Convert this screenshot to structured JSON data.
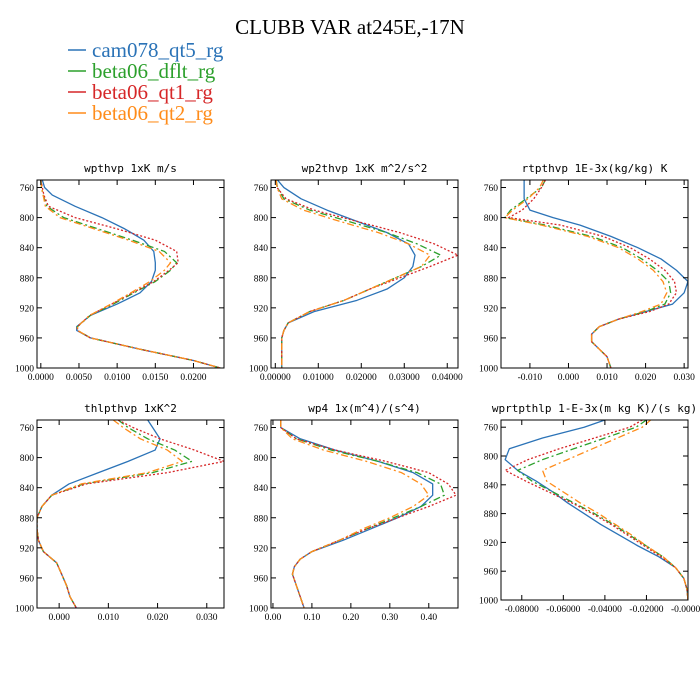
{
  "figure": {
    "title": "CLUBB VAR at245E,-17N",
    "legend": [
      {
        "label": "cam078_qt5_rg",
        "color": "#2b73b7",
        "dash": "solid"
      },
      {
        "label": "beta06_dflt_rg",
        "color": "#2ca02c",
        "dash": "dashdot"
      },
      {
        "label": "beta06_qt1_rg",
        "color": "#d62728",
        "dash": "dot"
      },
      {
        "label": "beta06_qt2_rg",
        "color": "#ff8c1a",
        "dash": "dashdot"
      }
    ]
  },
  "chart_data": [
    {
      "type": "line",
      "title": "wpthvp  1xK m/s",
      "xlim": [
        -0.0005,
        0.024
      ],
      "xticks": [
        0,
        0.005,
        0.01,
        0.015,
        0.02
      ],
      "xticklabels": [
        "0.0000",
        "0.0050",
        "0.0100",
        "0.0150",
        "0.0200"
      ],
      "ylim": [
        1000,
        750
      ],
      "yticks": [
        760,
        800,
        840,
        880,
        920,
        960,
        1000
      ],
      "levels": [
        750,
        760,
        770,
        785,
        800,
        815,
        830,
        845,
        860,
        870,
        885,
        900,
        915,
        930,
        945,
        950,
        960,
        975,
        990,
        1000
      ],
      "series": [
        {
          "name": "cam078_qt5_rg",
          "values": [
            0.0002,
            0.0005,
            0.0015,
            0.0045,
            0.008,
            0.011,
            0.0135,
            0.0148,
            0.015,
            0.015,
            0.0145,
            0.013,
            0.01,
            0.0065,
            0.0047,
            0.0047,
            0.0065,
            0.013,
            0.02,
            0.0235
          ]
        },
        {
          "name": "beta06_dflt_rg",
          "values": [
            0.0,
            0.0001,
            0.0003,
            0.0008,
            0.003,
            0.0075,
            0.012,
            0.0162,
            0.0178,
            0.017,
            0.015,
            0.0122,
            0.0095,
            0.0065,
            0.0048,
            0.0048,
            0.0065,
            0.013,
            0.02,
            0.0235
          ]
        },
        {
          "name": "beta06_qt1_rg",
          "values": [
            0.0,
            0.0002,
            0.0004,
            0.001,
            0.0045,
            0.01,
            0.015,
            0.0178,
            0.018,
            0.0168,
            0.0148,
            0.012,
            0.0093,
            0.0064,
            0.0048,
            0.0048,
            0.0065,
            0.013,
            0.02,
            0.0235
          ]
        },
        {
          "name": "beta06_qt2_rg",
          "values": [
            0.0,
            0.0001,
            0.0003,
            0.0006,
            0.0025,
            0.007,
            0.0115,
            0.0155,
            0.017,
            0.0162,
            0.0143,
            0.0118,
            0.0092,
            0.0064,
            0.0048,
            0.0048,
            0.0065,
            0.013,
            0.02,
            0.0235
          ]
        }
      ]
    },
    {
      "type": "line",
      "title": "wp2thvp  1xK m^2/s^2",
      "xlim": [
        -0.001,
        0.0425
      ],
      "xticks": [
        0,
        0.01,
        0.02,
        0.03,
        0.04
      ],
      "xticklabels": [
        "0.00000",
        "0.01000",
        "0.02000",
        "0.03000",
        "0.04000"
      ],
      "ylim": [
        1000,
        750
      ],
      "yticks": [
        760,
        800,
        840,
        880,
        920,
        960,
        1000
      ],
      "levels": [
        750,
        760,
        775,
        790,
        805,
        820,
        835,
        850,
        865,
        880,
        895,
        910,
        925,
        940,
        950,
        960,
        975,
        990,
        1000
      ],
      "series": [
        {
          "name": "cam078_qt5_rg",
          "values": [
            0.0005,
            0.002,
            0.006,
            0.012,
            0.019,
            0.026,
            0.031,
            0.0325,
            0.032,
            0.03,
            0.026,
            0.019,
            0.009,
            0.003,
            0.002,
            0.0015,
            0.0015,
            0.0015,
            0.0015
          ]
        },
        {
          "name": "beta06_dflt_rg",
          "values": [
            0.0002,
            0.0005,
            0.002,
            0.008,
            0.017,
            0.026,
            0.033,
            0.0385,
            0.034,
            0.028,
            0.022,
            0.016,
            0.008,
            0.003,
            0.002,
            0.0015,
            0.0015,
            0.0015,
            0.0015
          ]
        },
        {
          "name": "beta06_qt1_rg",
          "values": [
            0.0002,
            0.0004,
            0.0025,
            0.009,
            0.019,
            0.029,
            0.037,
            0.0425,
            0.036,
            0.029,
            0.022,
            0.016,
            0.008,
            0.003,
            0.002,
            0.0015,
            0.0015,
            0.0015,
            0.0015
          ]
        },
        {
          "name": "beta06_qt2_rg",
          "values": [
            0.0002,
            0.0004,
            0.0015,
            0.0065,
            0.015,
            0.024,
            0.031,
            0.036,
            0.034,
            0.028,
            0.022,
            0.016,
            0.008,
            0.003,
            0.002,
            0.0015,
            0.0015,
            0.0015,
            0.0015
          ]
        }
      ]
    },
    {
      "type": "line",
      "title": "rtpthvp  1E-3x(kg/kg) K",
      "xlim": [
        -0.0175,
        0.031
      ],
      "xticks": [
        -0.01,
        0,
        0.01,
        0.02,
        0.03
      ],
      "xticklabels": [
        "-0.010",
        "0.000",
        "0.010",
        "0.020",
        "0.030"
      ],
      "ylim": [
        1000,
        750
      ],
      "yticks": [
        760,
        800,
        840,
        880,
        920,
        960,
        1000
      ],
      "levels": [
        750,
        760,
        775,
        790,
        800,
        810,
        825,
        840,
        855,
        870,
        885,
        900,
        915,
        925,
        935,
        945,
        955,
        965,
        975,
        985,
        1000
      ],
      "series": [
        {
          "name": "cam078_qt5_rg",
          "values": [
            -0.0115,
            -0.0115,
            -0.0115,
            -0.01,
            -0.004,
            0.003,
            0.011,
            0.018,
            0.024,
            0.028,
            0.031,
            0.03,
            0.027,
            0.02,
            0.013,
            0.008,
            0.006,
            0.006,
            0.008,
            0.01,
            0.011
          ]
        },
        {
          "name": "beta06_dflt_rg",
          "values": [
            -0.006,
            -0.007,
            -0.011,
            -0.015,
            -0.0165,
            -0.006,
            0.006,
            0.014,
            0.019,
            0.023,
            0.026,
            0.0265,
            0.025,
            0.02,
            0.013,
            0.008,
            0.006,
            0.006,
            0.008,
            0.01,
            0.011
          ]
        },
        {
          "name": "beta06_qt1_rg",
          "values": [
            -0.006,
            -0.007,
            -0.009,
            -0.012,
            -0.0155,
            -0.002,
            0.009,
            0.016,
            0.021,
            0.025,
            0.0275,
            0.028,
            0.026,
            0.021,
            0.013,
            0.008,
            0.006,
            0.006,
            0.008,
            0.01,
            0.011
          ]
        },
        {
          "name": "beta06_qt2_rg",
          "values": [
            -0.0065,
            -0.0075,
            -0.0105,
            -0.0145,
            -0.0165,
            -0.007,
            0.005,
            0.013,
            0.018,
            0.022,
            0.0245,
            0.0255,
            0.024,
            0.019,
            0.013,
            0.008,
            0.006,
            0.006,
            0.008,
            0.01,
            0.011
          ]
        }
      ]
    },
    {
      "type": "line",
      "title": "thlpthvp  1xK^2",
      "xlim": [
        -0.0045,
        0.0335
      ],
      "xticks": [
        0,
        0.01,
        0.02,
        0.03
      ],
      "xticklabels": [
        "0.000",
        "0.010",
        "0.020",
        "0.030"
      ],
      "ylim": [
        1000,
        750
      ],
      "yticks": [
        760,
        800,
        840,
        880,
        920,
        960,
        1000
      ],
      "levels": [
        750,
        760,
        775,
        790,
        805,
        820,
        835,
        850,
        865,
        880,
        895,
        910,
        925,
        940,
        955,
        970,
        985,
        1000
      ],
      "series": [
        {
          "name": "cam078_qt5_rg",
          "values": [
            0.018,
            0.019,
            0.0205,
            0.0195,
            0.014,
            0.008,
            0.002,
            -0.0015,
            -0.0035,
            -0.0045,
            -0.0045,
            -0.0042,
            -0.0032,
            -0.0005,
            0.0005,
            0.0015,
            0.0022,
            0.0035
          ]
        },
        {
          "name": "beta06_dflt_rg",
          "values": [
            0.012,
            0.014,
            0.018,
            0.0235,
            0.027,
            0.019,
            0.005,
            -0.0015,
            -0.0035,
            -0.0045,
            -0.0045,
            -0.0042,
            -0.0032,
            -0.0005,
            0.0005,
            0.0015,
            0.0022,
            0.0035
          ]
        },
        {
          "name": "beta06_qt1_rg",
          "values": [
            0.012,
            0.015,
            0.0205,
            0.0275,
            0.0335,
            0.022,
            0.0055,
            -0.0015,
            -0.0035,
            -0.0045,
            -0.0045,
            -0.0042,
            -0.0032,
            -0.0005,
            0.0005,
            0.0015,
            0.0022,
            0.0035
          ]
        },
        {
          "name": "beta06_qt2_rg",
          "values": [
            0.011,
            0.013,
            0.0165,
            0.022,
            0.025,
            0.018,
            0.0045,
            -0.0015,
            -0.0035,
            -0.0045,
            -0.0045,
            -0.0042,
            -0.0032,
            -0.0005,
            0.0005,
            0.0015,
            0.0022,
            0.0035
          ]
        }
      ]
    },
    {
      "type": "line",
      "title": "wp4  1x(m^4)/(s^4)",
      "xlim": [
        -0.005,
        0.475
      ],
      "xticks": [
        0,
        0.1,
        0.2,
        0.3,
        0.4
      ],
      "xticklabels": [
        "0.00",
        "0.10",
        "0.20",
        "0.30",
        "0.40"
      ],
      "ylim": [
        1000,
        750
      ],
      "yticks": [
        760,
        800,
        840,
        880,
        920,
        960,
        1000
      ],
      "levels": [
        750,
        760,
        775,
        790,
        805,
        820,
        835,
        850,
        865,
        880,
        895,
        910,
        925,
        935,
        945,
        955,
        970,
        985,
        1000
      ],
      "series": [
        {
          "name": "cam078_qt5_rg",
          "values": [
            0.02,
            0.02,
            0.07,
            0.16,
            0.27,
            0.36,
            0.41,
            0.41,
            0.38,
            0.32,
            0.25,
            0.18,
            0.1,
            0.07,
            0.055,
            0.05,
            0.06,
            0.07,
            0.08
          ]
        },
        {
          "name": "beta06_dflt_rg",
          "values": [
            0.02,
            0.02,
            0.06,
            0.15,
            0.27,
            0.37,
            0.43,
            0.44,
            0.38,
            0.31,
            0.24,
            0.17,
            0.1,
            0.07,
            0.055,
            0.05,
            0.06,
            0.07,
            0.08
          ]
        },
        {
          "name": "beta06_qt1_rg",
          "values": [
            0.02,
            0.02,
            0.06,
            0.16,
            0.29,
            0.4,
            0.45,
            0.47,
            0.4,
            0.32,
            0.24,
            0.17,
            0.1,
            0.07,
            0.055,
            0.05,
            0.06,
            0.07,
            0.08
          ]
        },
        {
          "name": "beta06_qt2_rg",
          "values": [
            0.02,
            0.02,
            0.05,
            0.13,
            0.24,
            0.33,
            0.38,
            0.4,
            0.36,
            0.3,
            0.23,
            0.17,
            0.1,
            0.07,
            0.055,
            0.05,
            0.06,
            0.07,
            0.08
          ]
        }
      ]
    },
    {
      "type": "line",
      "title": "wprtpthlp  1-E-3x(m kg K)/(s kg)",
      "xlim": [
        -0.09,
        0.0
      ],
      "xticks": [
        -0.08,
        -0.06,
        -0.04,
        -0.02,
        0.0
      ],
      "xticklabels": [
        "-0.08000",
        "-0.06000",
        "-0.04000",
        "-0.02000",
        "-0.00000"
      ],
      "ylim": [
        1000,
        750
      ],
      "yticks": [
        760,
        800,
        840,
        880,
        920,
        960,
        1000
      ],
      "levels": [
        750,
        760,
        775,
        790,
        805,
        820,
        835,
        850,
        865,
        880,
        895,
        910,
        925,
        940,
        955,
        970,
        985,
        1000
      ],
      "series": [
        {
          "name": "cam078_qt5_rg",
          "values": [
            -0.04,
            -0.05,
            -0.07,
            -0.086,
            -0.088,
            -0.082,
            -0.073,
            -0.065,
            -0.058,
            -0.05,
            -0.042,
            -0.033,
            -0.024,
            -0.014,
            -0.006,
            -0.002,
            -0.0005,
            0.0
          ]
        },
        {
          "name": "beta06_dflt_rg",
          "values": [
            -0.02,
            -0.025,
            -0.04,
            -0.055,
            -0.07,
            -0.082,
            -0.075,
            -0.065,
            -0.055,
            -0.045,
            -0.036,
            -0.028,
            -0.02,
            -0.012,
            -0.006,
            -0.002,
            -0.0005,
            0.0
          ]
        },
        {
          "name": "beta06_qt1_rg",
          "values": [
            -0.022,
            -0.028,
            -0.045,
            -0.062,
            -0.077,
            -0.088,
            -0.078,
            -0.067,
            -0.056,
            -0.046,
            -0.037,
            -0.029,
            -0.021,
            -0.013,
            -0.006,
            -0.002,
            -0.0005,
            0.0
          ]
        },
        {
          "name": "beta06_qt2_rg",
          "values": [
            -0.018,
            -0.022,
            -0.034,
            -0.046,
            -0.058,
            -0.07,
            -0.068,
            -0.06,
            -0.052,
            -0.043,
            -0.035,
            -0.027,
            -0.02,
            -0.012,
            -0.006,
            -0.002,
            -0.0005,
            0.0
          ]
        }
      ]
    }
  ]
}
